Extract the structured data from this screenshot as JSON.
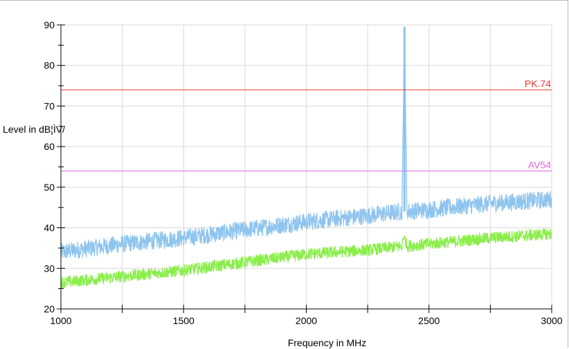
{
  "chart_data": {
    "type": "line",
    "title": "",
    "xlabel": "Frequency in MHz",
    "ylabel": "Level in dB¦ÌV/",
    "xlim": [
      1000,
      3000
    ],
    "ylim": [
      20,
      90
    ],
    "x_ticks": [
      1000,
      1500,
      2000,
      2500,
      3000
    ],
    "x_tick_labels": [
      "1000",
      "1500",
      "2000",
      "2500",
      "3000"
    ],
    "y_ticks": [
      20,
      30,
      40,
      50,
      60,
      70,
      80,
      90
    ],
    "y_tick_labels": [
      "20",
      "30",
      "40",
      "50",
      "60",
      "70",
      "80",
      "90"
    ],
    "grid": true,
    "limit_lines": [
      {
        "label": "PK.74",
        "value": 74,
        "color": "#e8382e"
      },
      {
        "label": "AV54",
        "value": 54,
        "color": "#e060e0"
      }
    ],
    "series": [
      {
        "color": "#8ec4ee",
        "x": [
          1000,
          1250,
          1500,
          1750,
          2000,
          2250,
          2390,
          2400,
          2410,
          2500,
          2750,
          3000
        ],
        "y": [
          34,
          36,
          37.5,
          39.5,
          41.5,
          43,
          44,
          89.5,
          44,
          44.5,
          46,
          47
        ],
        "noise": 2.2
      },
      {
        "color": "#8aee4a",
        "x": [
          1000,
          1250,
          1500,
          1750,
          2000,
          2250,
          2390,
          2400,
          2410,
          2500,
          2750,
          3000
        ],
        "y": [
          26.5,
          28,
          29.5,
          31.5,
          33.5,
          34.5,
          35.5,
          38,
          35.5,
          36,
          37.5,
          38.5
        ],
        "noise": 1.5
      }
    ]
  }
}
